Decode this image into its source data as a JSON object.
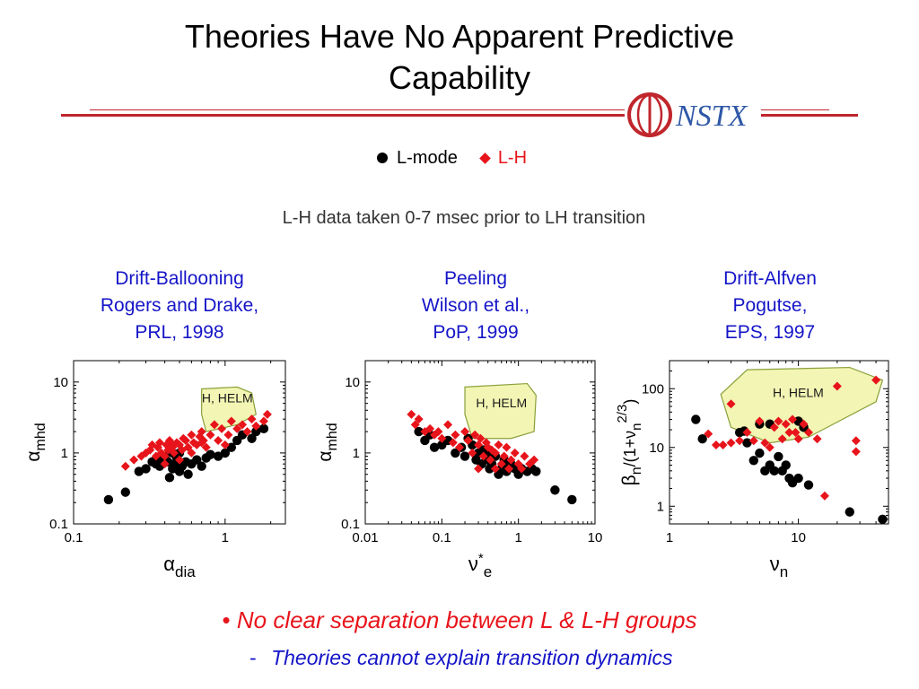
{
  "slide": {
    "title_line1": "Theories Have No Apparent Predictive",
    "title_line2": "Capability",
    "logo_text": "NSTX",
    "note": "L-H data taken 0-7 msec prior to LH transition",
    "bullet_marker": "•",
    "bullet": "No clear separation between L & L-H groups",
    "sub_dash": "-",
    "sub_bullet": "Theories cannot explain transition dynamics"
  },
  "colors": {
    "accent": "#c0262c",
    "title_blue": "#1515c8",
    "lmode": "#000000",
    "lh": "#e8141b",
    "helm_fill": "#f2f5b3",
    "helm_stroke": "#8aa03a"
  },
  "legend": [
    {
      "label": "L-mode",
      "marker": "circle",
      "color": "#000000"
    },
    {
      "label": "L-H",
      "marker": "diamond",
      "color": "#e8141b"
    }
  ],
  "panels": [
    {
      "lines": [
        "Drift-Ballooning",
        "Rogers and Drake,",
        "PRL, 1998"
      ]
    },
    {
      "lines": [
        "Peeling",
        "Wilson et al.,",
        "PoP, 1999"
      ]
    },
    {
      "lines": [
        "Drift-Alfven",
        "Pogutse,",
        "EPS, 1997"
      ]
    }
  ],
  "chart_data": [
    {
      "type": "scatter",
      "xscale": "log",
      "yscale": "log",
      "xlim": [
        0.1,
        2.5
      ],
      "ylim": [
        0.1,
        20
      ],
      "xticks": [
        "0.1",
        "1"
      ],
      "xtick_values": [
        0.1,
        1
      ],
      "yticks": [
        "0.1",
        "1",
        "10"
      ],
      "ytick_values": [
        0.1,
        1,
        10
      ],
      "xlabel": {
        "base": "α",
        "sub": "dia"
      },
      "ylabel": {
        "base": "α",
        "sub": "mhd"
      },
      "region_label": "H, HELM",
      "region": [
        [
          0.7,
          8
        ],
        [
          1.2,
          8.5
        ],
        [
          1.5,
          7
        ],
        [
          1.6,
          3.5
        ],
        [
          1.2,
          2.5
        ],
        [
          0.75,
          2.0
        ],
        [
          0.7,
          3.5
        ]
      ],
      "series": [
        {
          "name": "L-mode",
          "marker": "circle",
          "x": [
            0.17,
            0.22,
            0.27,
            0.3,
            0.33,
            0.35,
            0.37,
            0.38,
            0.4,
            0.42,
            0.43,
            0.45,
            0.47,
            0.48,
            0.5,
            0.52,
            0.55,
            0.57,
            0.6,
            0.65,
            0.7,
            0.75,
            0.8,
            0.9,
            1.0,
            1.1,
            1.2,
            1.3,
            1.5,
            1.6,
            1.8,
            0.45,
            0.5,
            0.4
          ],
          "y": [
            0.22,
            0.28,
            0.55,
            0.6,
            0.75,
            0.7,
            0.65,
            0.8,
            0.9,
            0.75,
            0.45,
            0.6,
            0.7,
            0.85,
            0.55,
            0.65,
            0.75,
            0.5,
            0.7,
            0.8,
            0.65,
            0.85,
            0.95,
            0.9,
            1.0,
            1.2,
            1.5,
            1.8,
            1.6,
            2.0,
            2.2,
            1.0,
            1.0,
            0.8
          ]
        },
        {
          "name": "L-H",
          "marker": "diamond",
          "x": [
            0.22,
            0.25,
            0.28,
            0.3,
            0.32,
            0.33,
            0.35,
            0.36,
            0.37,
            0.38,
            0.4,
            0.41,
            0.42,
            0.43,
            0.45,
            0.46,
            0.48,
            0.5,
            0.52,
            0.53,
            0.55,
            0.57,
            0.6,
            0.62,
            0.65,
            0.68,
            0.7,
            0.72,
            0.75,
            0.8,
            0.85,
            0.9,
            0.95,
            1.0,
            1.05,
            1.1,
            1.2,
            1.3,
            1.4,
            1.5,
            1.6,
            1.8,
            1.9,
            0.7,
            0.5,
            0.45,
            0.6,
            0.4
          ],
          "y": [
            0.65,
            0.8,
            0.9,
            1.0,
            1.1,
            1.3,
            0.9,
            1.2,
            1.4,
            1.0,
            0.9,
            1.3,
            1.1,
            1.5,
            1.2,
            1.0,
            1.4,
            1.3,
            1.1,
            1.6,
            1.5,
            1.2,
            1.8,
            1.4,
            1.3,
            1.7,
            2.0,
            1.5,
            1.2,
            1.8,
            2.5,
            1.5,
            2.2,
            1.3,
            1.8,
            2.8,
            2.2,
            2.5,
            2.0,
            3.0,
            2.4,
            2.8,
            3.5,
            1.4,
            0.8,
            1.3,
            1.0,
            0.7
          ]
        }
      ]
    },
    {
      "type": "scatter",
      "xscale": "log",
      "yscale": "log",
      "xlim": [
        0.01,
        10
      ],
      "ylim": [
        0.1,
        20
      ],
      "xticks": [
        "0.01",
        "0.1",
        "1",
        "10"
      ],
      "xtick_values": [
        0.01,
        0.1,
        1,
        10
      ],
      "yticks": [
        "0.1",
        "1",
        "10"
      ],
      "ytick_values": [
        0.1,
        1,
        10
      ],
      "xlabel": {
        "base": "ν",
        "sup": "*",
        "sub": "e"
      },
      "ylabel": {
        "base": "α",
        "sub": "mhd"
      },
      "region_label": "H, HELM",
      "region": [
        [
          0.2,
          8.5
        ],
        [
          1.3,
          9.5
        ],
        [
          1.7,
          6.5
        ],
        [
          1.6,
          2.0
        ],
        [
          0.8,
          1.6
        ],
        [
          0.25,
          1.6
        ],
        [
          0.2,
          3.5
        ]
      ],
      "series": [
        {
          "name": "L-mode",
          "marker": "circle",
          "x": [
            0.05,
            0.06,
            0.07,
            0.08,
            0.1,
            0.12,
            0.15,
            0.18,
            0.2,
            0.22,
            0.25,
            0.28,
            0.3,
            0.33,
            0.35,
            0.38,
            0.4,
            0.42,
            0.45,
            0.5,
            0.55,
            0.6,
            0.65,
            0.7,
            0.75,
            0.8,
            0.9,
            1.0,
            1.1,
            1.3,
            1.5,
            1.7,
            3.0,
            5.0
          ],
          "y": [
            2.0,
            1.5,
            1.8,
            1.2,
            1.3,
            1.5,
            1.0,
            1.2,
            0.9,
            1.6,
            1.3,
            0.8,
            1.0,
            0.7,
            1.1,
            0.8,
            1.0,
            0.6,
            0.7,
            0.9,
            0.5,
            0.6,
            0.8,
            0.55,
            0.65,
            0.7,
            0.6,
            0.5,
            0.6,
            0.55,
            0.6,
            0.55,
            0.3,
            0.22
          ]
        },
        {
          "name": "L-H",
          "marker": "diamond",
          "x": [
            0.04,
            0.045,
            0.05,
            0.06,
            0.07,
            0.08,
            0.09,
            0.1,
            0.12,
            0.14,
            0.15,
            0.17,
            0.2,
            0.22,
            0.25,
            0.27,
            0.3,
            0.32,
            0.35,
            0.38,
            0.4,
            0.43,
            0.45,
            0.5,
            0.55,
            0.6,
            0.65,
            0.7,
            0.75,
            0.8,
            0.9,
            1.0,
            1.1,
            1.2,
            1.4,
            1.6,
            0.3,
            0.5
          ],
          "y": [
            3.5,
            2.5,
            3.0,
            2.0,
            2.2,
            1.8,
            2.0,
            1.6,
            2.5,
            1.4,
            1.8,
            1.2,
            2.0,
            1.5,
            1.0,
            1.8,
            1.3,
            1.6,
            0.9,
            1.4,
            1.2,
            0.8,
            1.1,
            1.0,
            1.3,
            0.7,
            0.9,
            1.2,
            0.6,
            0.8,
            1.0,
            0.7,
            0.6,
            0.9,
            0.7,
            0.8,
            0.6,
            0.6
          ]
        }
      ]
    },
    {
      "type": "scatter",
      "xscale": "log",
      "yscale": "log",
      "xlim": [
        1,
        50
      ],
      "ylim": [
        0.5,
        300
      ],
      "xticks": [
        "1",
        "10"
      ],
      "xtick_values": [
        1,
        10
      ],
      "yticks": [
        "1",
        "10",
        "100"
      ],
      "ytick_values": [
        1,
        10,
        100
      ],
      "xlabel": {
        "base": "ν",
        "sub": "n"
      },
      "ylabel": {
        "base": "β",
        "sub": "n",
        "mid": "/(1+ν",
        "sub2": "n",
        "sup": "2/3",
        "tail": ")"
      },
      "region_label": "H, HELM",
      "region": [
        [
          2.5,
          80
        ],
        [
          4.0,
          210
        ],
        [
          25,
          230
        ],
        [
          45,
          140
        ],
        [
          40,
          60
        ],
        [
          12,
          15
        ],
        [
          6,
          12
        ],
        [
          3,
          22
        ]
      ],
      "series": [
        {
          "name": "L-mode",
          "marker": "circle",
          "x": [
            1.6,
            1.8,
            3.5,
            3.8,
            4.0,
            4.5,
            5.0,
            5.5,
            6.0,
            6.5,
            7.0,
            7.5,
            8.0,
            8.5,
            9.0,
            10.0,
            10.0,
            11.0,
            12.0,
            6.0,
            5.0,
            25.0,
            45.0
          ],
          "y": [
            30,
            14,
            18,
            19,
            12,
            6,
            8,
            4,
            5,
            4,
            7,
            4,
            5,
            3,
            2.5,
            28,
            3,
            22,
            2.3,
            25,
            25,
            0.8,
            0.6
          ]
        },
        {
          "name": "L-H",
          "marker": "diamond",
          "x": [
            2.0,
            2.3,
            2.6,
            3.0,
            3.5,
            4.0,
            4.5,
            5.0,
            5.5,
            6.0,
            6.5,
            7.0,
            7.5,
            8.0,
            8.5,
            9.0,
            9.5,
            10.0,
            11.0,
            12.0,
            14.0,
            16.0,
            20.0,
            28.0,
            28.0,
            40.0,
            3.0
          ],
          "y": [
            17,
            11,
            11,
            55,
            13,
            18,
            13,
            28,
            12,
            10,
            22,
            28,
            14,
            25,
            18,
            30,
            18,
            14,
            25,
            18,
            14,
            1.5,
            110,
            13,
            8.5,
            140,
            12
          ]
        }
      ]
    }
  ]
}
